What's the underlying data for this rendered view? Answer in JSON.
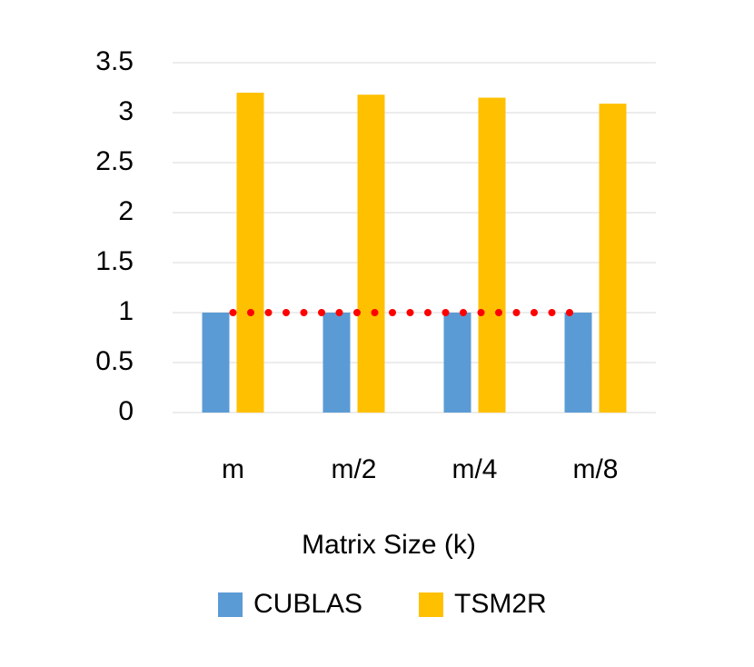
{
  "chart_data": {
    "type": "bar",
    "x_label": "Matrix Size (k)",
    "categories": [
      "m",
      "m/2",
      "m/4",
      "m/8"
    ],
    "series": [
      {
        "name": "CUBLAS",
        "color": "#5b9bd5",
        "values": [
          1,
          1,
          1,
          1
        ]
      },
      {
        "name": "TSM2R",
        "color": "#ffc000",
        "values": [
          3.2,
          3.18,
          3.15,
          3.09
        ]
      }
    ],
    "ylim": [
      0,
      3.5
    ],
    "yticks": [
      0,
      0.5,
      1,
      1.5,
      2,
      2.5,
      3,
      3.5
    ],
    "grid": true,
    "hline": {
      "value": 1,
      "color": "#ff0000",
      "style": "dotted"
    },
    "legend": "bottom"
  }
}
